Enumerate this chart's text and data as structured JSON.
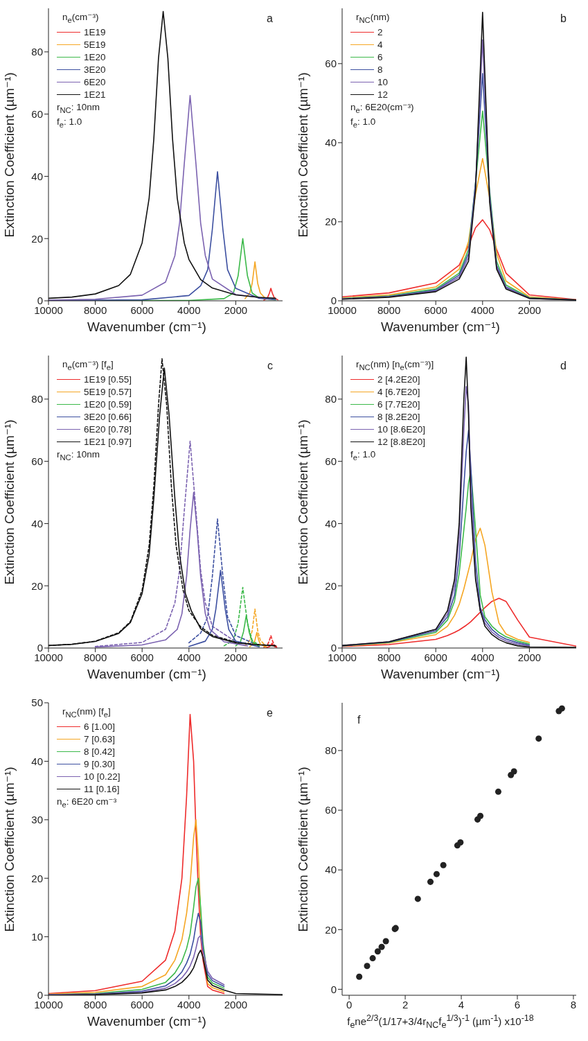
{
  "chart_data": [
    {
      "type": "line",
      "xlabel": "Wavenumber (cm⁻¹)",
      "ylabel": "Extinction Coefficient (µm⁻¹)",
      "legend": "top left",
      "legend_title": "n$_{e}$(cm⁻³)",
      "annotations": [
        "a",
        "r$_{NC}$: 10nm",
        "f$_{e}$: 1.0"
      ],
      "xlim": [
        10000,
        0
      ],
      "ylim": [
        0,
        94
      ],
      "xticks": [
        10000,
        8000,
        6000,
        4000,
        2000
      ],
      "yticks": [
        0,
        20,
        40,
        60,
        80
      ],
      "series": [
        {
          "name": "1E19",
          "color": "#ee2b2b",
          "x": [
            800,
            650,
            560,
            500,
            440,
            350,
            200
          ],
          "values": [
            0.2,
            0.9,
            2.5,
            4,
            2.5,
            0.9,
            0.3
          ]
        },
        {
          "name": "5E19",
          "color": "#f5a623",
          "x": [
            1600,
            1400,
            1300,
            1180,
            1060,
            950,
            700
          ],
          "values": [
            0.7,
            2.5,
            5.5,
            12.5,
            5.5,
            2.5,
            0.5
          ]
        },
        {
          "name": "1E20",
          "color": "#3cb94a",
          "x": [
            10000,
            4000,
            2500,
            2100,
            1900,
            1700,
            1500,
            1300,
            1000,
            300
          ],
          "values": [
            0,
            0.1,
            0.7,
            2.5,
            8,
            20,
            8,
            2.5,
            0.9,
            0.3
          ]
        },
        {
          "name": "3E20",
          "color": "#3c4fa0",
          "x": [
            10000,
            6000,
            4000,
            3500,
            3200,
            3000,
            2780,
            2550,
            2350,
            2000,
            1000,
            300
          ],
          "values": [
            0.1,
            0.3,
            1.7,
            4.8,
            10,
            23,
            41.5,
            23,
            10,
            4,
            0.8,
            0.4
          ]
        },
        {
          "name": "6E20",
          "color": "#7b62b0",
          "x": [
            10000,
            8000,
            6000,
            5000,
            4600,
            4400,
            4200,
            3950,
            3700,
            3500,
            3300,
            3000,
            2000,
            500
          ],
          "values": [
            0.2,
            0.5,
            1.8,
            6,
            14.5,
            25,
            44,
            66,
            44,
            25,
            14.5,
            7,
            2,
            0.6
          ]
        },
        {
          "name": "1E21",
          "color": "#111111",
          "x": [
            10000,
            9000,
            8000,
            7000,
            6500,
            6000,
            5700,
            5500,
            5300,
            5100,
            4900,
            4700,
            4500,
            4200,
            4000,
            3500,
            3000,
            2000,
            1000,
            300
          ],
          "values": [
            0.8,
            1.2,
            2.2,
            4.9,
            8.5,
            18.6,
            33,
            52,
            78,
            93,
            78,
            52,
            33,
            18.6,
            13.3,
            6.8,
            4.1,
            1.9,
            1.1,
            0.8
          ]
        }
      ]
    },
    {
      "type": "line",
      "xlabel": "Wavenumber (cm⁻¹)",
      "ylabel": "Extinction Coefficient (µm⁻¹)",
      "legend": "top left",
      "legend_title": "r$_{NC}$(nm)",
      "annotations": [
        "b",
        "n$_{e}$: 6E20(cm⁻³)",
        "f$_{e}$: 1.0"
      ],
      "xlim": [
        10000,
        0
      ],
      "ylim": [
        0,
        74
      ],
      "xticks": [
        10000,
        8000,
        6000,
        4000,
        2000
      ],
      "yticks": [
        0,
        20,
        40,
        60
      ],
      "x": [
        10000,
        8000,
        6000,
        5000,
        4600,
        4300,
        4000,
        3700,
        3400,
        3000,
        2000,
        0
      ],
      "series": [
        {
          "name": "2",
          "color": "#ee2b2b",
          "values": [
            1.0,
            2,
            4.5,
            9,
            14,
            18.5,
            20.5,
            18,
            13,
            7,
            1.5,
            0.3
          ]
        },
        {
          "name": "4",
          "color": "#f5a623",
          "values": [
            0.7,
            1.5,
            3.5,
            8,
            15,
            27,
            36,
            26,
            12,
            5,
            1,
            0.2
          ]
        },
        {
          "name": "6",
          "color": "#3cb94a",
          "values": [
            0.6,
            1.2,
            3,
            7,
            13,
            30,
            48,
            28,
            10,
            4,
            0.8,
            0.2
          ]
        },
        {
          "name": "8",
          "color": "#3c4fa0",
          "values": [
            0.5,
            1.1,
            2.7,
            6.5,
            12,
            30,
            57.5,
            27,
            9,
            3.5,
            0.7,
            0.2
          ]
        },
        {
          "name": "10",
          "color": "#7b62b0",
          "values": [
            0.5,
            1,
            2.5,
            6,
            11,
            29,
            66,
            26,
            8.5,
            3.3,
            0.6,
            0.2
          ]
        },
        {
          "name": "12",
          "color": "#111111",
          "values": [
            0.4,
            0.9,
            2.3,
            5.5,
            10,
            28,
            73,
            25,
            8,
            3,
            0.6,
            0.2
          ]
        }
      ]
    },
    {
      "type": "line",
      "xlabel": "Wavenumber (cm⁻¹)",
      "ylabel": "Extinction Coefficient (µm⁻¹)",
      "legend": "top left",
      "legend_title": "n$_{e}$(cm⁻³) [f$_{e}$]",
      "annotations": [
        "c",
        "r$_{NC}$: 10nm"
      ],
      "xlim": [
        10000,
        0
      ],
      "ylim": [
        0,
        94
      ],
      "xticks": [
        10000,
        8000,
        6000,
        4000,
        2000
      ],
      "yticks": [
        0,
        20,
        40,
        60,
        80
      ],
      "series": [
        {
          "color": "#ee2b2b",
          "line_style": "dashed",
          "x": [
            800,
            650,
            560,
            500,
            440,
            350,
            200
          ],
          "values": [
            0.2,
            0.9,
            2.5,
            4,
            2.5,
            0.9,
            0.3
          ]
        },
        {
          "color": "#f5a623",
          "line_style": "dashed",
          "x": [
            1600,
            1400,
            1300,
            1180,
            1060,
            950,
            700
          ],
          "values": [
            0.7,
            2.5,
            5.5,
            12.5,
            5.5,
            2.5,
            0.5
          ]
        },
        {
          "color": "#3cb94a",
          "line_style": "dashed",
          "x": [
            2500,
            2100,
            1900,
            1700,
            1500,
            1300,
            1000
          ],
          "values": [
            0.7,
            2.5,
            8,
            19.5,
            8,
            2.5,
            0.9
          ]
        },
        {
          "color": "#3c4fa0",
          "line_style": "dashed",
          "x": [
            4000,
            3500,
            3200,
            3000,
            2780,
            2550,
            2350,
            2000,
            1000
          ],
          "values": [
            1.7,
            4.8,
            10,
            23,
            41.5,
            23,
            10,
            4,
            0.8
          ]
        },
        {
          "color": "#7b62b0",
          "line_style": "dashed",
          "x": [
            8000,
            6000,
            5000,
            4600,
            4400,
            4200,
            3950,
            3700,
            3500,
            3300,
            3000,
            2000
          ],
          "values": [
            0.5,
            1.8,
            6,
            14.5,
            25,
            44,
            66.5,
            44,
            25,
            14.5,
            7,
            2
          ]
        },
        {
          "color": "#111111",
          "line_style": "dashed",
          "x": [
            10000,
            9000,
            8000,
            7000,
            6500,
            6000,
            5700,
            5500,
            5300,
            5150,
            4950,
            4750,
            4550,
            4250,
            4000,
            3500,
            3000,
            2000,
            1000,
            300
          ],
          "values": [
            0.8,
            1.2,
            2.2,
            4.9,
            8.5,
            18.6,
            33,
            52,
            78,
            93,
            78,
            52,
            33,
            18.6,
            12,
            6.8,
            4.1,
            1.9,
            1.1,
            0.8
          ]
        },
        {
          "name": "1E19 [0.55]",
          "color": "#ee2b2b",
          "x": [
            700,
            550,
            500,
            450,
            400,
            350,
            250
          ],
          "values": [
            0.1,
            0.5,
            0.9,
            1.5,
            0.9,
            0.5,
            0.2
          ]
        },
        {
          "name": "5E19 [0.57]",
          "color": "#f5a623",
          "x": [
            1400,
            1250,
            1180,
            1100,
            1020,
            950,
            700
          ],
          "values": [
            0.4,
            1.3,
            2.5,
            5,
            2.5,
            1.3,
            0.2
          ]
        },
        {
          "name": "1E20 [0.59]",
          "color": "#3cb94a",
          "x": [
            2000,
            1800,
            1670,
            1550,
            1430,
            1300,
            1000
          ],
          "values": [
            0.7,
            2,
            5.2,
            10.5,
            5.2,
            2,
            0.5
          ]
        },
        {
          "name": "3E20 [0.66]",
          "color": "#3c4fa0",
          "x": [
            4000,
            3300,
            3000,
            2850,
            2650,
            2450,
            2300,
            2000,
            1000
          ],
          "values": [
            0.5,
            2.2,
            6,
            12.5,
            25,
            12.5,
            6,
            2.2,
            0.4
          ]
        },
        {
          "name": "6E20 [0.78]",
          "color": "#7b62b0",
          "x": [
            8000,
            6000,
            5000,
            4500,
            4300,
            4100,
            3950,
            3800,
            3650,
            3500,
            3300,
            3100,
            2500,
            1500
          ],
          "values": [
            0.3,
            1,
            2.6,
            6,
            11,
            23,
            38,
            50,
            38,
            23,
            11,
            6,
            2,
            0.7
          ]
        },
        {
          "name": "1E21 [0.97]",
          "color": "#111111",
          "x": [
            10000,
            9000,
            8000,
            7000,
            6500,
            6000,
            5700,
            5500,
            5250,
            5050,
            4850,
            4600,
            4400,
            4150,
            3900,
            3500,
            3000,
            2000,
            1000,
            300
          ],
          "values": [
            0.8,
            1.2,
            2.1,
            4.7,
            8.2,
            17.5,
            30,
            48,
            75,
            90,
            75,
            48,
            30,
            17.5,
            12,
            6.2,
            3.7,
            1.7,
            1,
            0.7
          ]
        }
      ]
    },
    {
      "type": "line",
      "xlabel": "Wavenumber (cm⁻¹)",
      "ylabel": "Extinction Coefficient (µm⁻¹)",
      "legend": "top left",
      "legend_title": "r$_{NC}$(nm) [n$_{e}$(cm⁻³)]",
      "annotations": [
        "d",
        "f$_{e}$: 1.0"
      ],
      "xlim": [
        10000,
        0
      ],
      "ylim": [
        0,
        94
      ],
      "xticks": [
        10000,
        8000,
        6000,
        4000,
        2000
      ],
      "yticks": [
        0,
        20,
        40,
        60,
        80
      ],
      "x": [
        10000,
        8000,
        6000,
        5500,
        5200,
        5000,
        4800,
        4700,
        4600,
        4500,
        4300,
        4100,
        3900,
        3600,
        3300,
        3000,
        2500,
        2000,
        0
      ],
      "series": [
        {
          "name": "2 [4.2E20]",
          "color": "#ee2b2b",
          "values": [
            0.5,
            1.1,
            2.8,
            4,
            5,
            5.8,
            6.8,
            7.3,
            7.9,
            8.5,
            10,
            11.5,
            13,
            15,
            16,
            15,
            9,
            3.5,
            0.6
          ]
        },
        {
          "name": "4 [6.7E20]",
          "color": "#f5a623",
          "values": [
            0.6,
            1.6,
            4.3,
            7,
            10.5,
            14,
            19,
            22,
            25,
            28,
            35,
            38.5,
            33,
            18,
            8,
            4.5,
            2.8,
            1.8,
            null
          ]
        },
        {
          "name": "6 [7.7E20]",
          "color": "#3cb94a",
          "values": [
            0.7,
            1.8,
            5,
            9,
            15,
            24,
            38,
            45,
            53,
            57,
            38,
            17,
            10,
            7,
            5,
            3.6,
            2.2,
            1.3,
            null
          ]
        },
        {
          "name": "8 [8.2E20]",
          "color": "#3c4fa0",
          "values": [
            0.7,
            1.9,
            5.5,
            10,
            17,
            29,
            52,
            63,
            70,
            58,
            28,
            13,
            9,
            6,
            4.1,
            2.9,
            1.7,
            0.9,
            null
          ]
        },
        {
          "name": "10 [8.6E20]",
          "color": "#7b62b0",
          "values": [
            0.8,
            2,
            6,
            11,
            20,
            36,
            70,
            84,
            78,
            50,
            23,
            12,
            8,
            5.1,
            3.4,
            2.3,
            1.2,
            0.6,
            null
          ]
        },
        {
          "name": "12 [8.8E20]",
          "color": "#111111",
          "values": [
            0.8,
            2,
            6,
            12,
            22,
            40,
            80,
            93.5,
            75,
            45,
            22,
            12,
            7,
            4.3,
            2.7,
            1.7,
            0.7,
            0.3,
            0.2
          ]
        }
      ]
    },
    {
      "type": "line",
      "xlabel": "Wavenumber (cm⁻¹)",
      "ylabel": "Extinction Coefficient (µm⁻¹)",
      "legend": "top left",
      "legend_title": "r$_{NC}$(nm) [f$_{e}$]",
      "annotations": [
        "e",
        "n$_{e}$: 6E20 cm⁻³"
      ],
      "xlim": [
        10000,
        0
      ],
      "ylim": [
        0,
        50
      ],
      "xticks": [
        10000,
        8000,
        6000,
        4000,
        2000
      ],
      "yticks": [
        0,
        10,
        20,
        30,
        40,
        50
      ],
      "x": [
        10000,
        8000,
        6000,
        5000,
        4600,
        4300,
        4100,
        3950,
        3800,
        3700,
        3600,
        3500,
        3400,
        3200,
        3000,
        2500,
        2000,
        0
      ],
      "series": [
        {
          "name": "6 [1.00]",
          "color": "#ee2b2b",
          "values": [
            0.3,
            0.8,
            2.4,
            6,
            11,
            20,
            34,
            48,
            40,
            28,
            18,
            10,
            6,
            1.5,
            0.9,
            0.3,
            null,
            null
          ]
        },
        {
          "name": "7 [0.63]",
          "color": "#f5a623",
          "values": [
            0.2,
            0.5,
            1.5,
            3.5,
            6,
            9.5,
            14,
            19,
            27,
            30,
            24,
            14,
            8,
            2.0,
            1.3,
            0.6,
            null,
            null
          ]
        },
        {
          "name": "8 [0.42]",
          "color": "#3cb94a",
          "values": [
            0.1,
            0.3,
            1,
            2.2,
            3.8,
            5.8,
            8,
            10.5,
            15,
            18.5,
            20,
            15,
            9,
            3.1,
            2.1,
            1.2,
            null,
            null
          ]
        },
        {
          "name": "9 [0.30]",
          "color": "#3c4fa0",
          "values": [
            0.1,
            0.2,
            0.7,
            1.6,
            2.7,
            4,
            5.5,
            7,
            9.5,
            12,
            14,
            12.5,
            8,
            3.6,
            2.5,
            1.5,
            null,
            null
          ]
        },
        {
          "name": "10 [0.22]",
          "color": "#7b62b0",
          "values": [
            0.1,
            0.2,
            0.5,
            1.2,
            2,
            3,
            4,
            5,
            6.5,
            8,
            9.8,
            10.2,
            7.5,
            4.1,
            2.9,
            1.8,
            null,
            null
          ]
        },
        {
          "name": "11 [0.16]",
          "color": "#111111",
          "values": [
            0,
            0.1,
            0.4,
            0.9,
            1.5,
            2.2,
            3,
            3.7,
            4.7,
            5.8,
            7,
            7.7,
            6.5,
            2.6,
            1.7,
            0.9,
            0.3,
            0.1
          ]
        }
      ]
    },
    {
      "type": "scatter",
      "xlabel": "f$_{e}$ne$^{2/3}$(1/17+3/4r$_{NC}$f$_{e}$$^{1/3}$)$^{-1}$ (µm$^{-1}$) x10$^{-18}$",
      "ylabel": "Extinction Coefficient (µm⁻¹)",
      "annotations": [
        "f"
      ],
      "marker": "circle",
      "xlim": [
        -0.25,
        8.1
      ],
      "ylim": [
        -2,
        96
      ],
      "xticks": [
        0,
        2,
        4,
        6,
        8
      ],
      "yticks": [
        0,
        20,
        40,
        60,
        80
      ],
      "series": [
        {
          "color": "#222222",
          "x": [
            0.36,
            0.64,
            0.84,
            1.02,
            1.16,
            1.31,
            1.63,
            1.66,
            2.45,
            2.9,
            3.12,
            3.36,
            3.86,
            3.97,
            4.58,
            4.68,
            5.32,
            5.77,
            5.88,
            6.76,
            7.48,
            7.59
          ],
          "values": [
            4.2,
            7.8,
            10.4,
            12.7,
            14.2,
            16.1,
            20.2,
            20.5,
            30.3,
            36,
            38.6,
            41.6,
            48.2,
            49.2,
            56.9,
            58.1,
            66.2,
            71.8,
            73,
            84,
            93.2,
            94.1
          ]
        }
      ]
    }
  ]
}
